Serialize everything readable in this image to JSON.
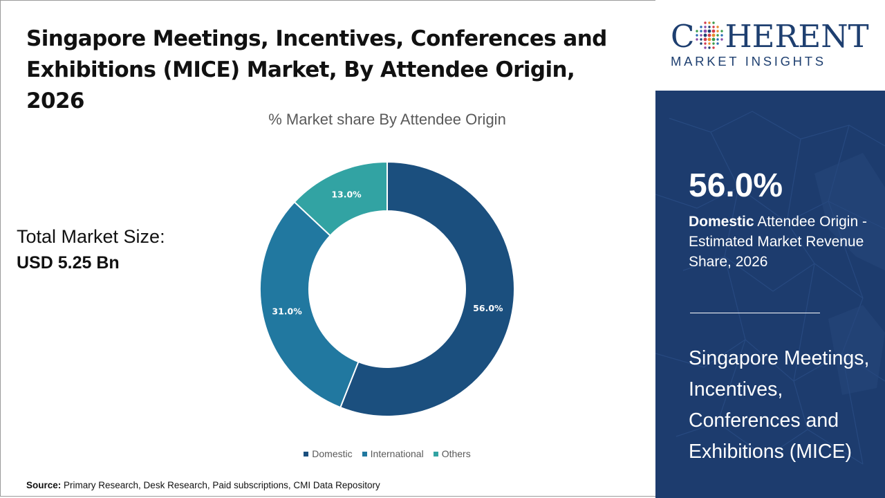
{
  "header": {
    "title": "Singapore Meetings, Incentives, Conferences and Exhibitions (MICE) Market, By Attendee Origin, 2026"
  },
  "market_size": {
    "label": "Total Market Size:",
    "value": "USD 5.25 Bn"
  },
  "chart_data": {
    "type": "pie",
    "title": "% Market share By Attendee Origin",
    "donut": true,
    "categories": [
      "Domestic",
      "International",
      "Others"
    ],
    "values": [
      56.0,
      31.0,
      13.0
    ],
    "labels": [
      "56.0%",
      "31.0%",
      "13.0%"
    ],
    "colors": [
      "#1b4f7e",
      "#2178a0",
      "#32a3a3"
    ],
    "legend_position": "bottom"
  },
  "legend": {
    "items": [
      {
        "label": "Domestic",
        "color": "#1b4f7e"
      },
      {
        "label": "International",
        "color": "#2178a0"
      },
      {
        "label": "Others",
        "color": "#32a3a3"
      }
    ]
  },
  "source": {
    "label": "Source:",
    "text": "Primary Research, Desk Research, Paid subscriptions, CMI Data Repository"
  },
  "brand": {
    "logo_part1": "C",
    "logo_part2": "HERENT",
    "logo_sub": "MARKET INSIGHTS",
    "color": "#1e3f70"
  },
  "sidebar": {
    "stat_value": "56.0%",
    "stat_bold": "Domestic",
    "stat_text": " Attendee Origin - Estimated Market Revenue Share, 2026",
    "title": "Singapore Meetings, Incentives, Conferences and Exhibitions (MICE)",
    "background": "#1d3c6e"
  }
}
